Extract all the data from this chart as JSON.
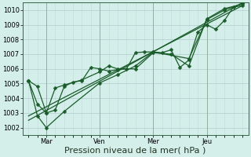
{
  "background_color": "#d4eeea",
  "plot_bg_color": "#d4eeea",
  "grid_major_color": "#b0cccc",
  "grid_minor_color": "#c0dcda",
  "line_color": "#1a5c2a",
  "marker_color": "#1a5c2a",
  "xlabel": "Pression niveau de la mer( hPa )",
  "ylim": [
    1001.5,
    1010.5
  ],
  "yticks": [
    1002,
    1003,
    1004,
    1005,
    1006,
    1007,
    1008,
    1009,
    1010
  ],
  "xtick_labels": [
    "Mar",
    "Ven",
    "Mer",
    "Jeu"
  ],
  "xtick_positions": [
    24,
    96,
    168,
    240
  ],
  "num_hours": 288,
  "series1_x": [
    0,
    12,
    24,
    36,
    48,
    60,
    72,
    84,
    96,
    108,
    120,
    132,
    144,
    156,
    168,
    180,
    192,
    204,
    216,
    228,
    240,
    252,
    264,
    276,
    288
  ],
  "series1_y": [
    1005.2,
    1004.8,
    1003.0,
    1003.2,
    1004.8,
    1005.1,
    1005.2,
    1006.1,
    1006.0,
    1005.85,
    1005.95,
    1006.0,
    1007.1,
    1007.15,
    1007.15,
    1007.1,
    1007.3,
    1006.1,
    1006.6,
    1008.5,
    1009.0,
    1008.7,
    1009.3,
    1010.2,
    1010.3
  ],
  "series2_x": [
    0,
    12,
    24,
    36,
    48,
    72,
    96,
    108,
    120,
    144,
    168,
    192,
    216,
    240,
    264,
    288
  ],
  "series2_y": [
    1005.2,
    1003.6,
    1003.0,
    1004.7,
    1004.9,
    1005.25,
    1005.8,
    1006.2,
    1006.0,
    1006.0,
    1007.1,
    1007.0,
    1006.2,
    1009.4,
    1010.1,
    1010.4
  ],
  "series3_x": [
    0,
    12,
    24,
    48,
    96,
    120,
    144,
    168,
    216,
    240,
    264,
    288
  ],
  "series3_y": [
    1005.2,
    1002.8,
    1002.0,
    1003.1,
    1005.05,
    1005.6,
    1006.2,
    1007.15,
    1006.7,
    1009.35,
    1010.0,
    1010.45
  ],
  "trend_x": [
    0,
    288
  ],
  "trend_y": [
    1002.8,
    1010.3
  ],
  "trend2_x": [
    0,
    288
  ],
  "trend2_y": [
    1002.5,
    1010.5
  ],
  "xlim": [
    -8,
    296
  ],
  "fig_width": 3.2,
  "fig_height": 2.0,
  "dpi": 100,
  "vline_positions": [
    24,
    96,
    168,
    240
  ],
  "vline_color": "#8aaa9a",
  "xlabel_fontsize": 8,
  "tick_fontsize": 6,
  "marker_size": 2.5,
  "line_width": 0.9,
  "spine_color": "#336644"
}
